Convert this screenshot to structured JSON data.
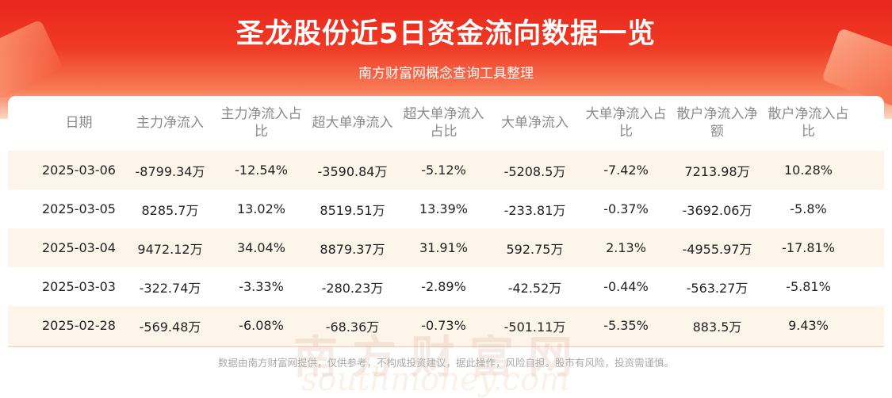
{
  "header": {
    "title": "圣龙股份近5日资金流向数据一览",
    "subtitle": "南方财富网概念查询工具整理"
  },
  "table": {
    "columns": [
      "日期",
      "主力净流入",
      "主力净流入占比",
      "超大单净流入",
      "超大单净流入占比",
      "大单净流入",
      "大单净流入占比",
      "散户净流入净额",
      "散户净流入占比"
    ],
    "rows": [
      [
        "2025-03-06",
        "-8799.34万",
        "-12.54%",
        "-3590.84万",
        "-5.12%",
        "-5208.5万",
        "-7.42%",
        "7213.98万",
        "10.28%"
      ],
      [
        "2025-03-05",
        "8285.7万",
        "13.02%",
        "8519.51万",
        "13.39%",
        "-233.81万",
        "-0.37%",
        "-3692.06万",
        "-5.8%"
      ],
      [
        "2025-03-04",
        "9472.12万",
        "34.04%",
        "8879.37万",
        "31.91%",
        "592.75万",
        "2.13%",
        "-4955.97万",
        "-17.81%"
      ],
      [
        "2025-03-03",
        "-322.74万",
        "-3.33%",
        "-280.23万",
        "-2.89%",
        "-42.52万",
        "-0.44%",
        "-563.27万",
        "-5.81%"
      ],
      [
        "2025-02-28",
        "-569.48万",
        "-6.08%",
        "-68.36万",
        "-0.73%",
        "-501.11万",
        "-5.35%",
        "883.5万",
        "9.43%"
      ]
    ]
  },
  "watermark": {
    "cn": "南方财富网",
    "en": "southmoney.com"
  },
  "footer": {
    "disclaimer": "数据由南方财富网提供，仅供参考，不构成投资建议，据此操作，风险自担。股市有风险，投资需谨慎。"
  },
  "colors": {
    "brand_red": "#e8271c",
    "row_alt": "#fdf4ea"
  }
}
